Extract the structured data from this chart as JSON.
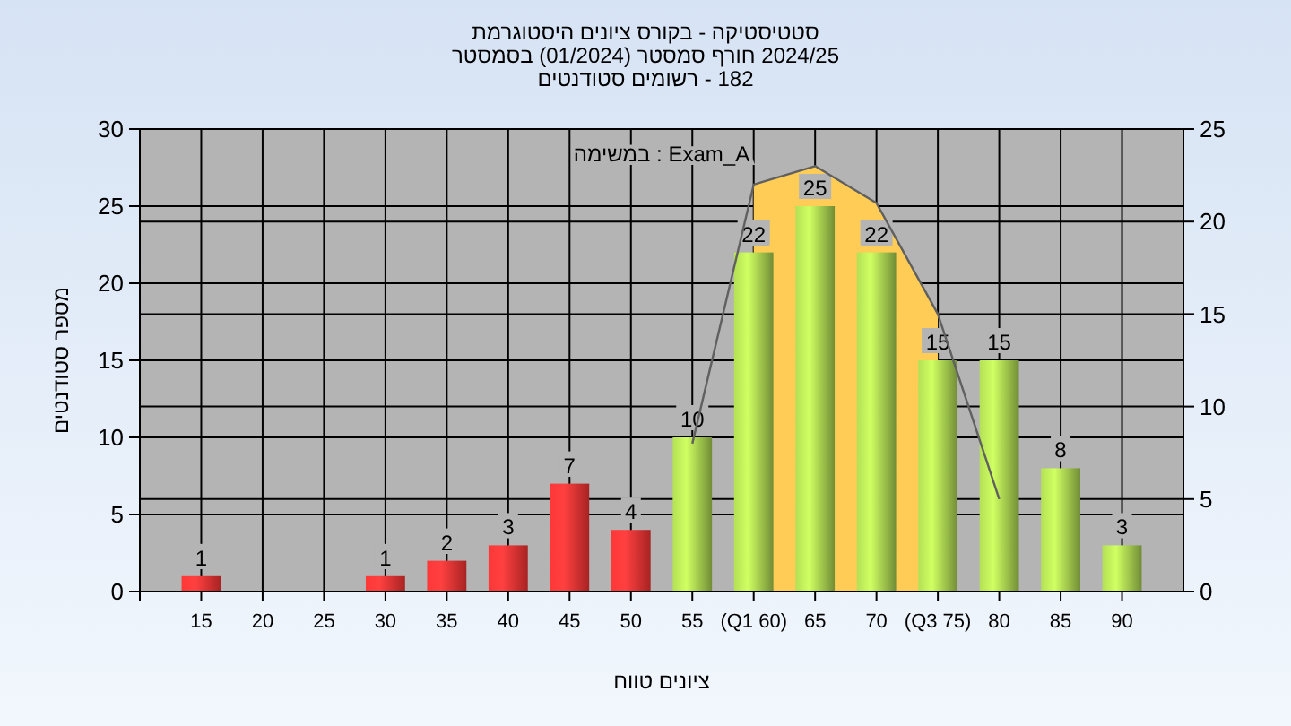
{
  "chart_data": {
    "type": "bar",
    "title": "סטטיסטיקה - בקורס ציונים היסטוגרמת",
    "subtitle": "2024/25 חורף סמסטר (01/2024) בסמסטר\n182 - רשומים סטודנטים",
    "xlabel": "ציונים טווח",
    "ylabel": "מספר סטודנטים",
    "annotations": [
      "Exam_A : במשימה"
    ],
    "x": [
      15,
      20,
      25,
      30,
      35,
      40,
      45,
      50,
      55,
      60,
      65,
      70,
      75,
      80,
      85,
      90
    ],
    "series": [
      {
        "type": "area",
        "axis": "y2",
        "color": "#ffcc55",
        "x": [
          60,
          65,
          70,
          75
        ],
        "values": [
          22,
          23,
          21,
          15
        ]
      },
      {
        "type": "line",
        "axis": "y2",
        "color": "#606060",
        "x": [
          55,
          60,
          65,
          70,
          75,
          80
        ],
        "values": [
          8,
          22,
          23,
          21,
          15,
          5
        ]
      },
      {
        "values": [
          1,
          null,
          null,
          1,
          2,
          3,
          7,
          4,
          10,
          22,
          25,
          22,
          15,
          15,
          8,
          3
        ],
        "value_labels": [
          "1",
          null,
          null,
          "1",
          "2",
          "3",
          "7",
          "4",
          "10",
          "22",
          "25",
          "22",
          "15",
          "15",
          "8",
          "3"
        ],
        "colors": [
          "#e83030",
          null,
          null,
          "#e83030",
          "#e83030",
          "#e83030",
          "#e83030",
          "#e83030",
          "#9cc24a",
          "#9cc24a",
          "#9cc24a",
          "#9cc24a",
          "#9cc24a",
          "#9cc24a",
          "#9cc24a",
          "#9cc24a"
        ]
      }
    ],
    "xlim": [
      10,
      95
    ],
    "xticks": [
      15,
      20,
      25,
      30,
      35,
      40,
      45,
      50,
      55,
      {
        "value": 60,
        "label": "(Q1 60)"
      },
      65,
      70,
      {
        "value": 75,
        "label": "(Q3 75)"
      },
      80,
      85,
      90
    ],
    "ylim": [
      0,
      30
    ],
    "yticks": [
      0,
      5,
      10,
      15,
      20,
      25,
      30
    ],
    "y2lim": [
      0,
      25
    ],
    "y2ticks": [
      0,
      5,
      10,
      15,
      20,
      25
    ],
    "grid": true
  }
}
